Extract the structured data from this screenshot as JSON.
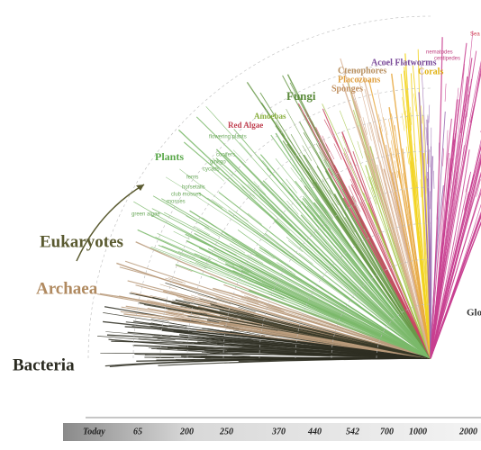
{
  "labels": {
    "sea": "Sea",
    "nematodes": "nematodes",
    "centipedes": "centipedes",
    "acoel": "Acoel Flatworms",
    "corals": "Corals",
    "ctenophores": "Ctenophores",
    "placozoans": "Placozoans",
    "sponges": "Sponges",
    "fungi": "Fungi",
    "amoebas": "Amoebas",
    "red_algae": "Red Algae",
    "flowering_plants": "flowering plants",
    "conifers": "conifers",
    "ginkgo": "ginkgo",
    "cycads": "cycads",
    "ferns": "ferns",
    "horsetails": "horsetails",
    "club_mosses": "club mosses",
    "mosses": "mosses",
    "green_algae": "green algae",
    "plants": "Plants",
    "eukaryotes": "Eukaryotes",
    "archaea": "Archaea",
    "bacteria": "Bacteria",
    "glo": "Glo"
  },
  "timeline": [
    "Today",
    "65",
    "200",
    "250",
    "370",
    "440",
    "542",
    "700",
    "1000",
    "2000"
  ]
}
